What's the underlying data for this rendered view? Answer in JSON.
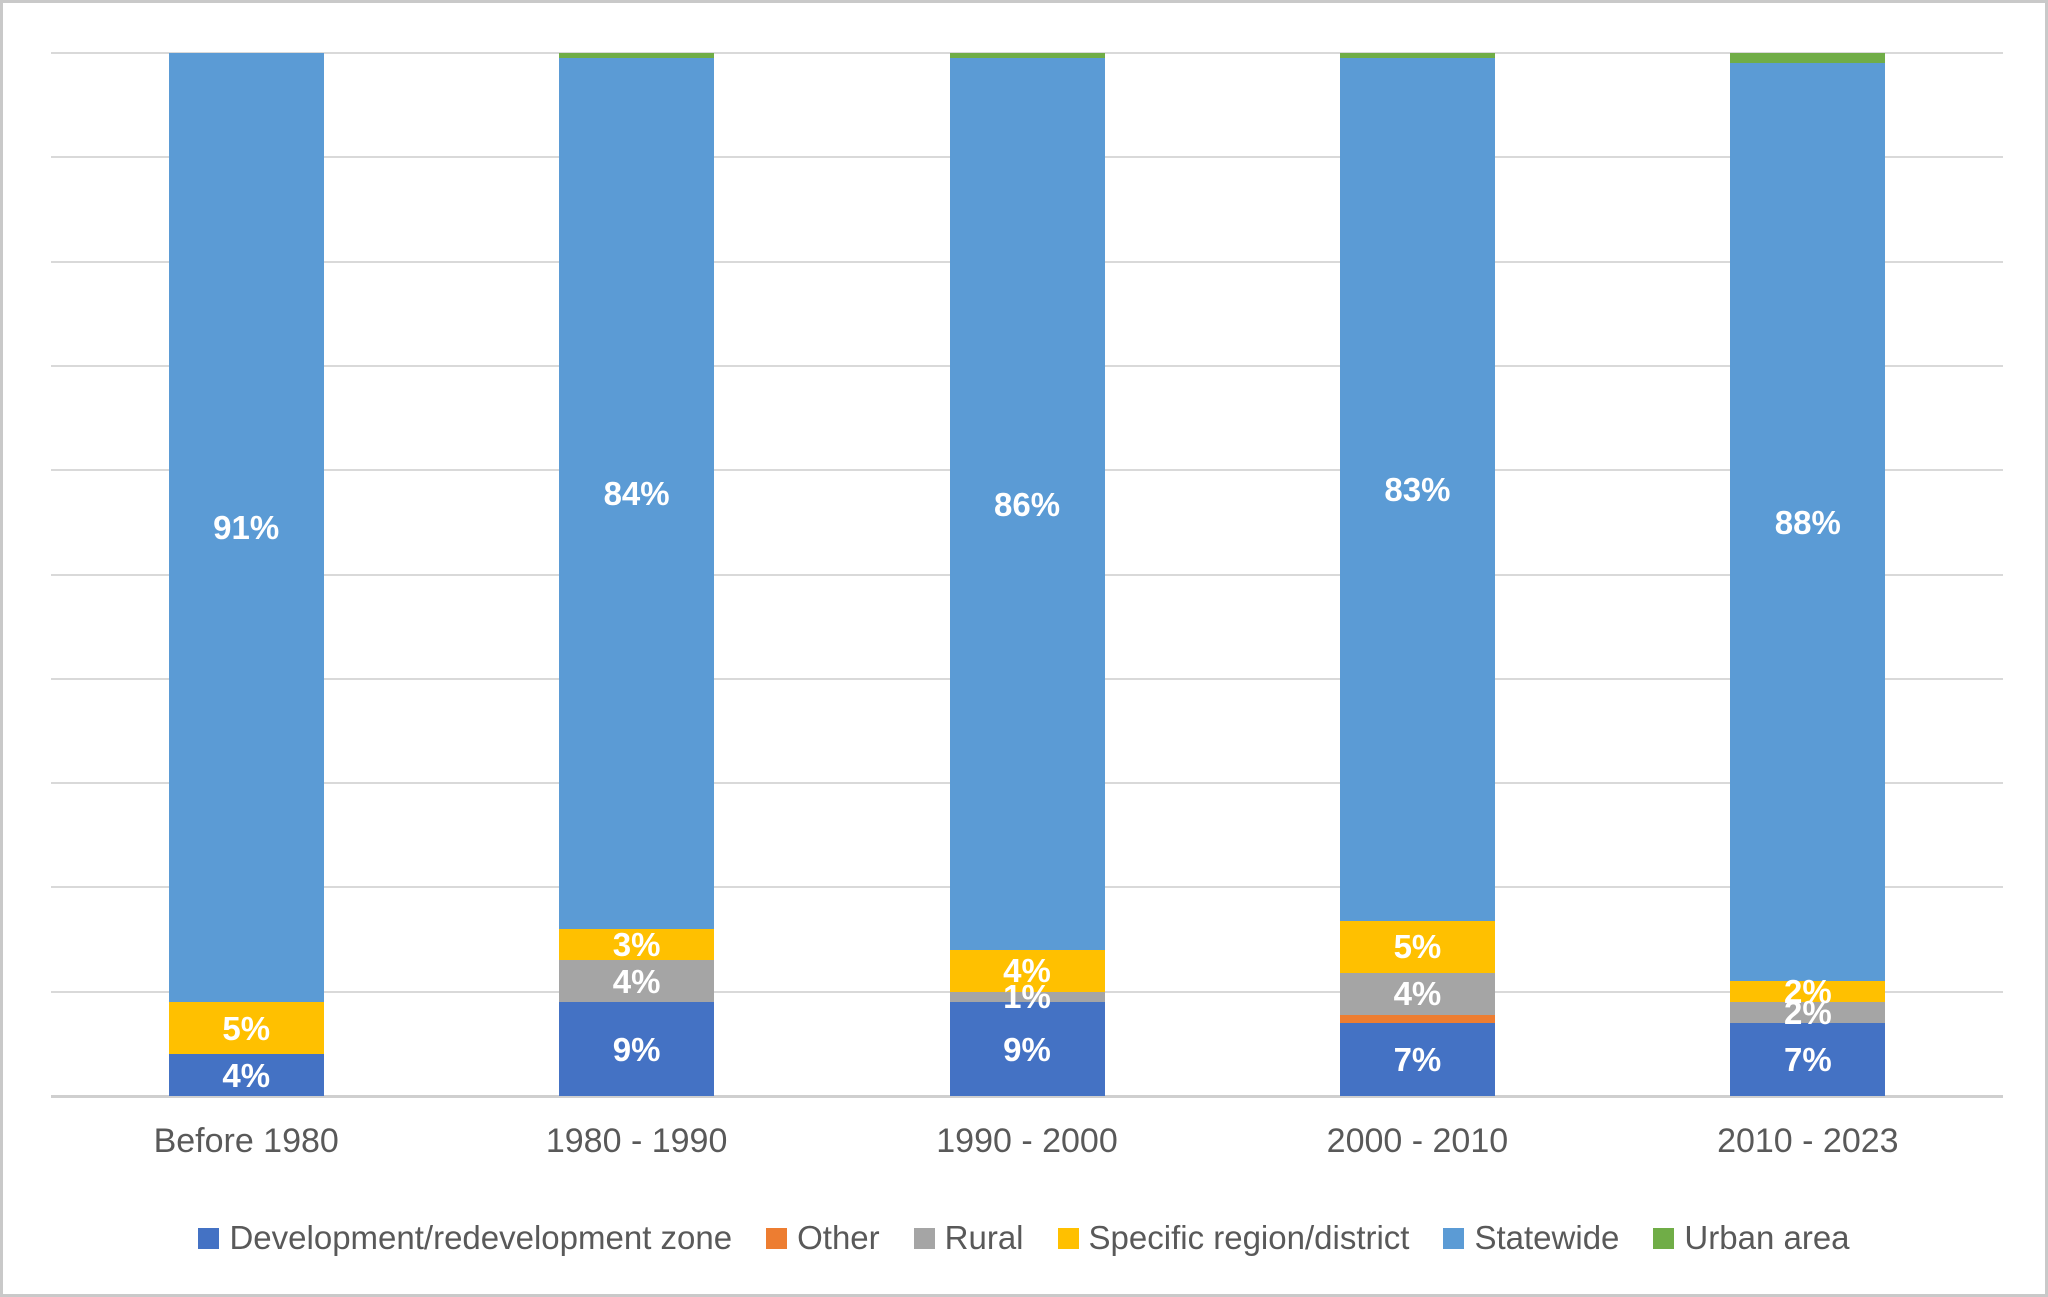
{
  "chart_data": {
    "type": "bar",
    "stacked": true,
    "unit": "percent",
    "title": "",
    "xlabel": "",
    "ylabel": "",
    "ylim": [
      0,
      100
    ],
    "gridline_interval": 10,
    "grid": true,
    "legend_position": "bottom",
    "categories": [
      "Before 1980",
      "1980 - 1990",
      "1990 - 2000",
      "2000 - 2010",
      "2010 - 2023"
    ],
    "series": [
      {
        "name": "Development/redevelopment zone",
        "color": "#4472C4",
        "values": [
          4,
          9,
          9,
          7,
          7
        ],
        "labels": [
          "4%",
          "9%",
          "9%",
          "7%",
          "7%"
        ]
      },
      {
        "name": "Other",
        "color": "#ED7D31",
        "values": [
          0,
          0,
          0,
          0.8,
          0
        ],
        "labels": [
          "",
          "",
          "",
          "",
          ""
        ]
      },
      {
        "name": "Rural",
        "color": "#A5A5A5",
        "values": [
          0,
          4,
          1,
          4,
          2
        ],
        "labels": [
          "",
          "4%",
          "1%",
          "4%",
          "2%"
        ]
      },
      {
        "name": "Specific region/district",
        "color": "#FFC000",
        "values": [
          5,
          3,
          4,
          5,
          2
        ],
        "labels": [
          "5%",
          "3%",
          "4%",
          "5%",
          "2%"
        ]
      },
      {
        "name": "Statewide",
        "color": "#5B9BD5",
        "values": [
          91,
          83.5,
          85.5,
          82.7,
          88
        ],
        "labels": [
          "91%",
          "84%",
          "86%",
          "83%",
          "88%"
        ]
      },
      {
        "name": "Urban area",
        "color": "#70AD47",
        "values": [
          0,
          0.5,
          0.5,
          0.5,
          1
        ],
        "labels": [
          "",
          "",
          "",
          "",
          ""
        ]
      }
    ]
  },
  "styles": {
    "background": "#FFFFFF",
    "frame_border": "#C9C9C9",
    "gridline": "#D9D9D9",
    "axis_line": "#CFCFCF",
    "axis_label_color": "#595959",
    "legend_label_color": "#595959",
    "data_label_color": "#FFFFFF"
  }
}
